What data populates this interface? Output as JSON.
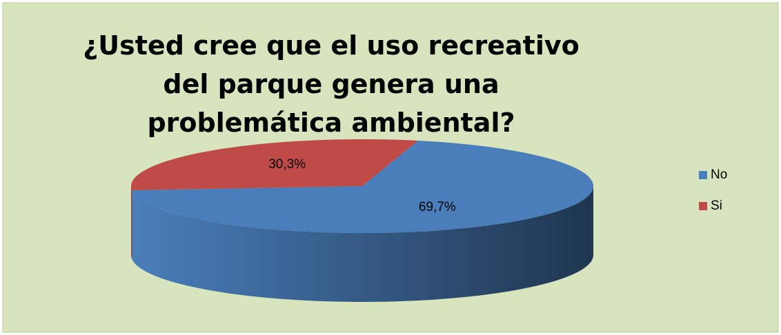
{
  "chart_data": {
    "type": "pie",
    "title": "¿Usted cree que el uso recreativo del parque genera una problemática ambiental?",
    "categories": [
      "No",
      "Si"
    ],
    "values": [
      69.7,
      30.3
    ],
    "value_labels": [
      "69,7%",
      "30,3%"
    ],
    "colors": [
      "#4a7ebb",
      "#be4b48"
    ],
    "legend": "right"
  }
}
